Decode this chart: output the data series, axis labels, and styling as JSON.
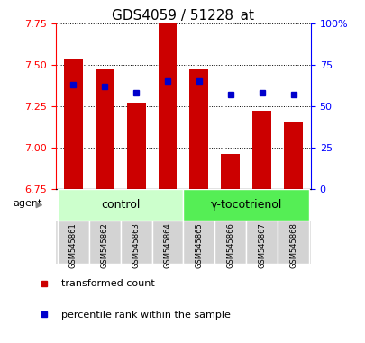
{
  "title": "GDS4059 / 51228_at",
  "samples": [
    "GSM545861",
    "GSM545862",
    "GSM545863",
    "GSM545864",
    "GSM545865",
    "GSM545866",
    "GSM545867",
    "GSM545868"
  ],
  "red_values": [
    7.53,
    7.47,
    7.27,
    7.77,
    7.47,
    6.96,
    7.22,
    7.15
  ],
  "blue_values": [
    63,
    62,
    58,
    65,
    65,
    57,
    58,
    57
  ],
  "y_left_min": 6.75,
  "y_left_max": 7.75,
  "y_right_min": 0,
  "y_right_max": 100,
  "y_left_ticks": [
    6.75,
    7.0,
    7.25,
    7.5,
    7.75
  ],
  "y_right_ticks": [
    0,
    25,
    50,
    75,
    100
  ],
  "y_right_tick_labels": [
    "0",
    "25",
    "50",
    "75",
    "100%"
  ],
  "bar_color": "#CC0000",
  "dot_color": "#0000CC",
  "bar_width": 0.6,
  "groups": [
    {
      "label": "control",
      "indices": [
        0,
        1,
        2,
        3
      ],
      "color": "#ccffcc"
    },
    {
      "label": "γ-tocotrienol",
      "indices": [
        4,
        5,
        6,
        7
      ],
      "color": "#55ee55"
    }
  ],
  "agent_label": "agent",
  "legend_items": [
    {
      "color": "#CC0000",
      "label": "transformed count"
    },
    {
      "color": "#0000CC",
      "label": "percentile rank within the sample"
    }
  ],
  "background_plot": "#ffffff",
  "title_fontsize": 11,
  "tick_fontsize": 8,
  "sample_fontsize": 6,
  "group_fontsize": 9,
  "legend_fontsize": 8,
  "agent_fontsize": 8,
  "xlim_left": -0.55,
  "xlim_right": 7.55
}
